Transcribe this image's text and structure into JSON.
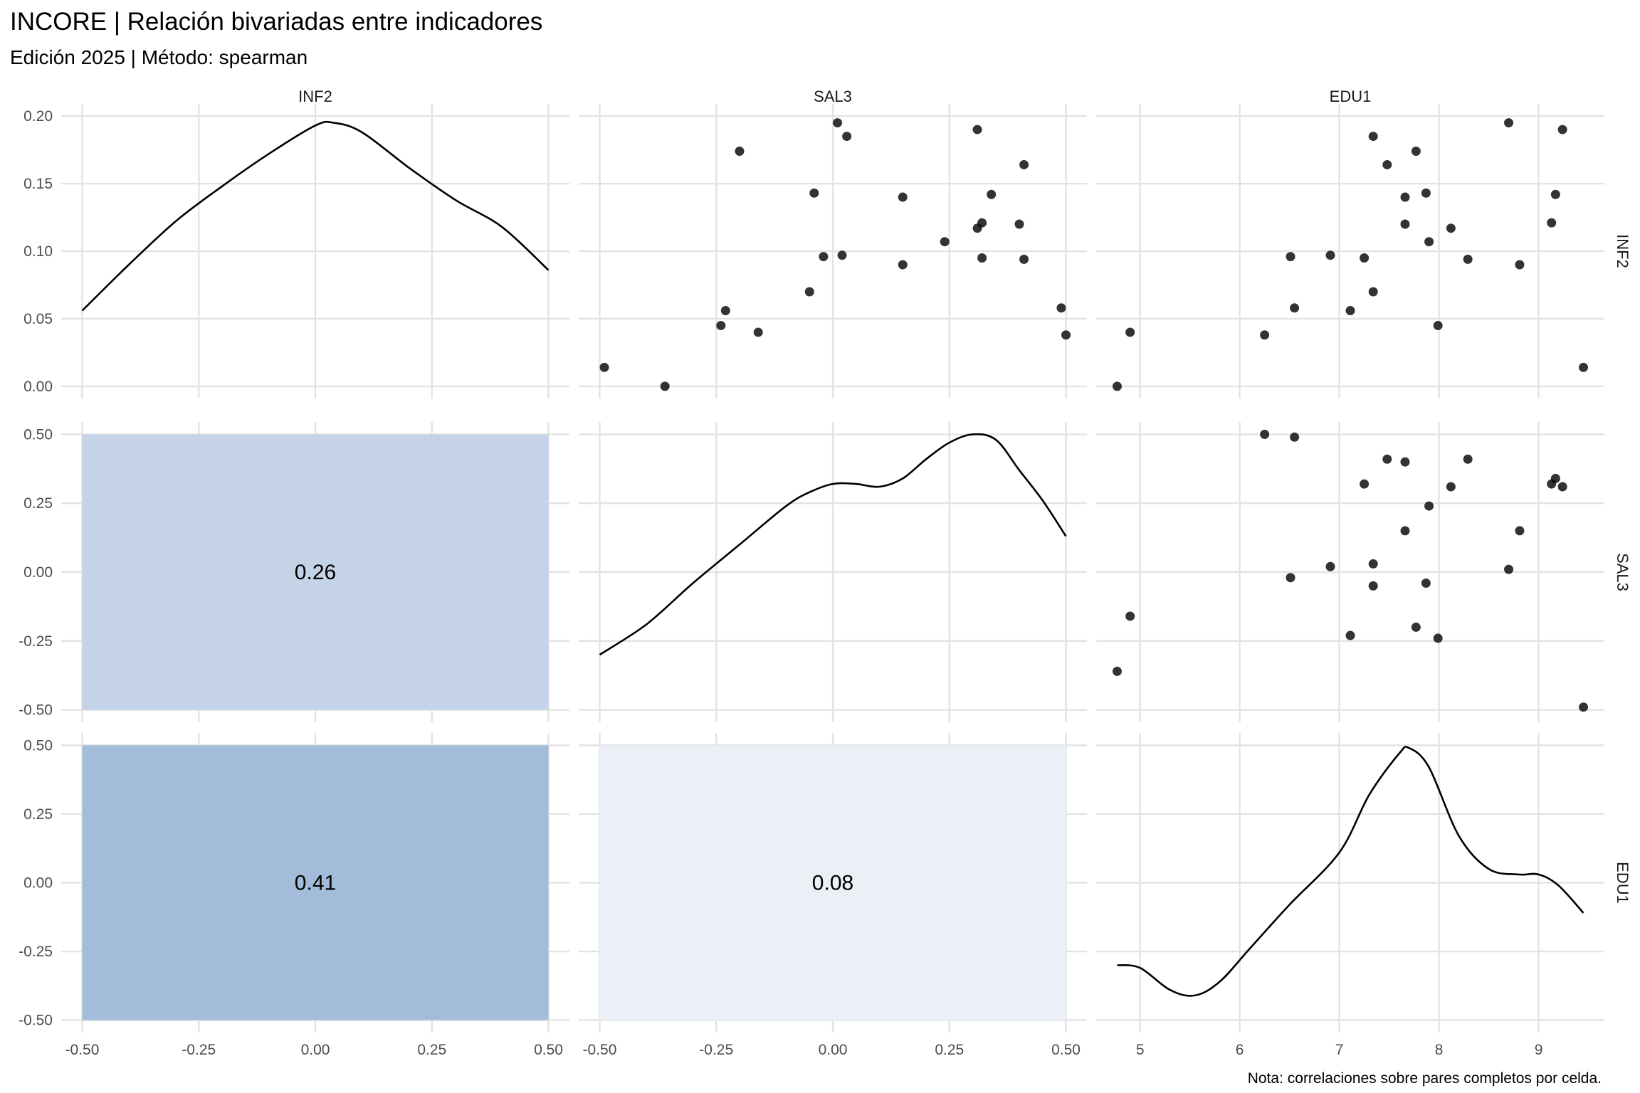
{
  "title": "INCORE | Relación bivariadas entre indicadores",
  "subtitle": "Edición 2025 | Método: spearman",
  "caption": "Nota: correlaciones sobre pares completos por celda.",
  "chart_data": {
    "type": "scatter",
    "variables": [
      "INF2",
      "SAL3",
      "EDU1"
    ],
    "axis_ranges": {
      "INF2": [
        -0.5,
        0.5
      ],
      "SAL3": [
        -0.5,
        0.5
      ],
      "EDU1": [
        4.77,
        9.45
      ]
    },
    "y_ranges": {
      "INF2": [
        0.0,
        0.2
      ],
      "SAL3": [
        -0.5,
        0.5
      ],
      "EDU1": [
        -0.5,
        0.5
      ]
    },
    "x_tick_labels": {
      "INF2": [
        "-0.50",
        "-0.25",
        "0.00",
        "0.25",
        "0.50"
      ],
      "SAL3": [
        "-0.50",
        "-0.25",
        "0.00",
        "0.25",
        "0.50"
      ],
      "EDU1": [
        "5",
        "6",
        "7",
        "8",
        "9"
      ]
    },
    "x_tick_values": {
      "INF2": [
        -0.5,
        -0.25,
        0,
        0.25,
        0.5
      ],
      "SAL3": [
        -0.5,
        -0.25,
        0,
        0.25,
        0.5
      ],
      "EDU1": [
        5,
        6,
        7,
        8,
        9
      ]
    },
    "y_tick_labels": {
      "INF2": [
        "0.00",
        "0.05",
        "0.10",
        "0.15",
        "0.20"
      ],
      "SAL3": [
        "-0.50",
        "-0.25",
        "0.00",
        "0.25",
        "0.50"
      ],
      "EDU1": [
        "-0.50",
        "-0.25",
        "0.00",
        "0.25",
        "0.50"
      ]
    },
    "y_tick_values": {
      "INF2": [
        0,
        0.05,
        0.1,
        0.15,
        0.2
      ],
      "SAL3": [
        -0.5,
        -0.25,
        0,
        0.25,
        0.5
      ],
      "EDU1": [
        -0.5,
        -0.25,
        0,
        0.25,
        0.5
      ]
    },
    "correlations": [
      {
        "row": "SAL3",
        "col": "INF2",
        "value": 0.26,
        "label": "0.26",
        "fill": "#c5d3e8"
      },
      {
        "row": "EDU1",
        "col": "INF2",
        "value": 0.41,
        "label": "0.41",
        "fill": "#a3bcda"
      },
      {
        "row": "EDU1",
        "col": "SAL3",
        "value": 0.08,
        "label": "0.08",
        "fill": "#ebf0f7"
      }
    ],
    "observations": [
      {
        "INF2": 0.014,
        "SAL3": -0.49,
        "EDU1": 9.45
      },
      {
        "INF2": 0.0,
        "SAL3": -0.36,
        "EDU1": 4.77
      },
      {
        "INF2": 0.04,
        "SAL3": -0.16,
        "EDU1": 4.9
      },
      {
        "INF2": 0.038,
        "SAL3": 0.5,
        "EDU1": 6.25
      },
      {
        "INF2": 0.058,
        "SAL3": 0.49,
        "EDU1": 6.55
      },
      {
        "INF2": 0.045,
        "SAL3": -0.24,
        "EDU1": 7.99
      },
      {
        "INF2": 0.056,
        "SAL3": -0.23,
        "EDU1": 7.11
      },
      {
        "INF2": 0.07,
        "SAL3": -0.05,
        "EDU1": 7.34
      },
      {
        "INF2": 0.096,
        "SAL3": -0.02,
        "EDU1": 6.51
      },
      {
        "INF2": 0.097,
        "SAL3": 0.02,
        "EDU1": 6.91
      },
      {
        "INF2": 0.174,
        "SAL3": -0.2,
        "EDU1": 7.77
      },
      {
        "INF2": 0.143,
        "SAL3": -0.04,
        "EDU1": 7.87
      },
      {
        "INF2": 0.195,
        "SAL3": 0.01,
        "EDU1": 8.7
      },
      {
        "INF2": 0.185,
        "SAL3": 0.03,
        "EDU1": 7.34
      },
      {
        "INF2": 0.14,
        "SAL3": 0.15,
        "EDU1": 7.66
      },
      {
        "INF2": 0.09,
        "SAL3": 0.15,
        "EDU1": 8.81
      },
      {
        "INF2": 0.107,
        "SAL3": 0.24,
        "EDU1": 7.9
      },
      {
        "INF2": 0.117,
        "SAL3": 0.31,
        "EDU1": 8.12
      },
      {
        "INF2": 0.19,
        "SAL3": 0.31,
        "EDU1": 9.24
      },
      {
        "INF2": 0.121,
        "SAL3": 0.32,
        "EDU1": 9.13
      },
      {
        "INF2": 0.095,
        "SAL3": 0.32,
        "EDU1": 7.25
      },
      {
        "INF2": 0.142,
        "SAL3": 0.34,
        "EDU1": 9.17
      },
      {
        "INF2": 0.12,
        "SAL3": 0.4,
        "EDU1": 7.66
      },
      {
        "INF2": 0.094,
        "SAL3": 0.41,
        "EDU1": 8.29
      },
      {
        "INF2": 0.164,
        "SAL3": 0.41,
        "EDU1": 7.48
      }
    ],
    "densities": {
      "INF2": {
        "x": [
          -0.5,
          -0.4,
          -0.3,
          -0.2,
          -0.1,
          0.0,
          0.04,
          0.1,
          0.2,
          0.3,
          0.4,
          0.5
        ],
        "y": [
          0.056,
          0.09,
          0.122,
          0.148,
          0.172,
          0.193,
          0.195,
          0.188,
          0.162,
          0.138,
          0.118,
          0.086
        ]
      },
      "SAL3": {
        "x": [
          -0.5,
          -0.4,
          -0.3,
          -0.2,
          -0.1,
          -0.05,
          0.0,
          0.05,
          0.1,
          0.15,
          0.2,
          0.25,
          0.3,
          0.35,
          0.4,
          0.45,
          0.5
        ],
        "y": [
          -0.3,
          -0.19,
          -0.04,
          0.1,
          0.24,
          0.29,
          0.32,
          0.32,
          0.31,
          0.34,
          0.41,
          0.47,
          0.5,
          0.48,
          0.37,
          0.26,
          0.13
        ]
      },
      "EDU1": {
        "x": [
          4.77,
          5.0,
          5.3,
          5.55,
          5.8,
          6.1,
          6.5,
          7.0,
          7.3,
          7.6,
          7.7,
          7.9,
          8.2,
          8.5,
          8.8,
          9.0,
          9.2,
          9.45
        ],
        "y": [
          -0.3,
          -0.31,
          -0.39,
          -0.41,
          -0.36,
          -0.24,
          -0.08,
          0.11,
          0.32,
          0.47,
          0.49,
          0.42,
          0.17,
          0.05,
          0.03,
          0.03,
          -0.01,
          -0.11
        ]
      }
    },
    "grid": true,
    "legend": "none"
  }
}
